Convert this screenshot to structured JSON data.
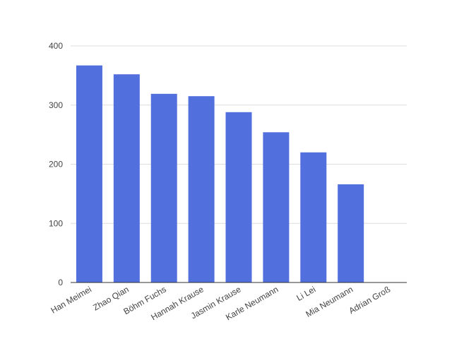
{
  "chart_data": {
    "type": "bar",
    "categories": [
      "Han Meimei",
      "Zhao Qian",
      "Böhm Fuchs",
      "Hannah Krause",
      "Jasmin Krause",
      "Karle Neumann",
      "Li Lei",
      "Mia Neumann",
      "Adrian Groß"
    ],
    "values": [
      367,
      352,
      319,
      315,
      288,
      254,
      220,
      166,
      0
    ],
    "ylim": [
      0,
      400
    ],
    "yticks": [
      0,
      100,
      200,
      300,
      400
    ],
    "grid": true,
    "bar_color": "#5170de"
  }
}
